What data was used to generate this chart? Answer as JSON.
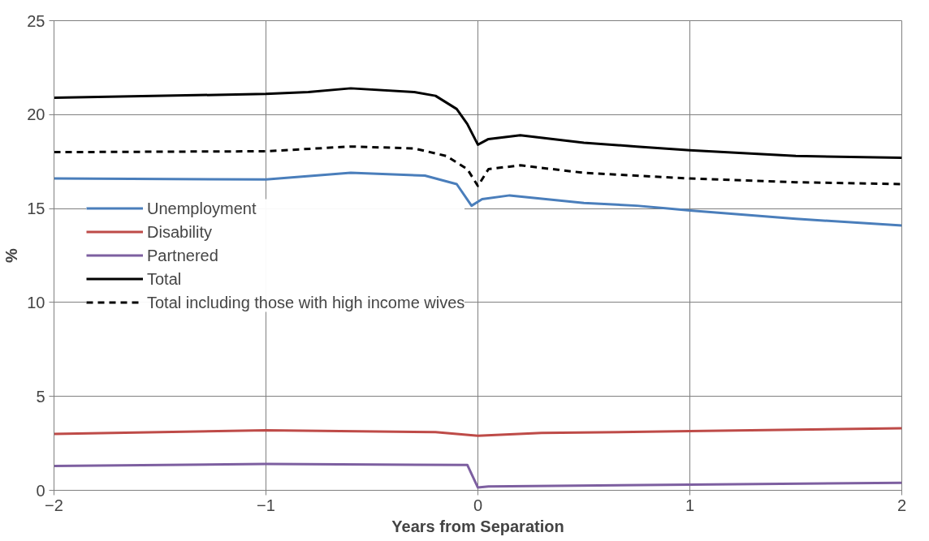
{
  "chart_data": {
    "type": "line",
    "xlabel": "Years from Separation",
    "ylabel": "%",
    "xlim": [
      -2,
      2
    ],
    "ylim": [
      0,
      25
    ],
    "xticks": [
      -2,
      -1,
      0,
      1,
      2
    ],
    "yticks": [
      0,
      5,
      10,
      15,
      20,
      25
    ],
    "grid": true,
    "legend": "left",
    "marker": "none",
    "series": [
      {
        "name": "Unemployment",
        "color": "#4a7ebb",
        "line_style": "solid",
        "x": [
          -2,
          -1,
          -0.6,
          -0.25,
          -0.1,
          -0.03,
          0.02,
          0.15,
          0.5,
          0.75,
          1,
          1.5,
          2
        ],
        "values": [
          16.6,
          16.55,
          16.9,
          16.75,
          16.3,
          15.15,
          15.5,
          15.7,
          15.3,
          15.15,
          14.9,
          14.45,
          14.1
        ]
      },
      {
        "name": "Disability",
        "color": "#be4b48",
        "line_style": "solid",
        "x": [
          -2,
          -1,
          -0.2,
          0,
          0.3,
          1,
          2
        ],
        "values": [
          3.0,
          3.2,
          3.1,
          2.9,
          3.05,
          3.15,
          3.3
        ]
      },
      {
        "name": "Partnered",
        "color": "#7d5fa0",
        "line_style": "solid",
        "x": [
          -2,
          -1,
          -0.05,
          0,
          0.05,
          1,
          2
        ],
        "values": [
          1.3,
          1.4,
          1.35,
          0.15,
          0.2,
          0.3,
          0.4
        ]
      },
      {
        "name": "Total",
        "color": "#000000",
        "line_style": "solid",
        "x": [
          -2,
          -1,
          -0.8,
          -0.6,
          -0.3,
          -0.2,
          -0.1,
          -0.05,
          0,
          0.05,
          0.2,
          0.5,
          0.75,
          1,
          1.5,
          2
        ],
        "values": [
          20.9,
          21.1,
          21.2,
          21.4,
          21.2,
          21.0,
          20.3,
          19.5,
          18.4,
          18.7,
          18.9,
          18.5,
          18.3,
          18.1,
          17.8,
          17.7
        ]
      },
      {
        "name": "Total including those with high income wives",
        "color": "#000000",
        "line_style": "dashed",
        "x": [
          -2,
          -1,
          -0.6,
          -0.3,
          -0.15,
          -0.05,
          0,
          0.05,
          0.2,
          0.5,
          1,
          1.5,
          2
        ],
        "values": [
          18.0,
          18.05,
          18.3,
          18.2,
          17.8,
          17.1,
          16.2,
          17.1,
          17.3,
          16.9,
          16.6,
          16.4,
          16.3
        ]
      }
    ]
  }
}
